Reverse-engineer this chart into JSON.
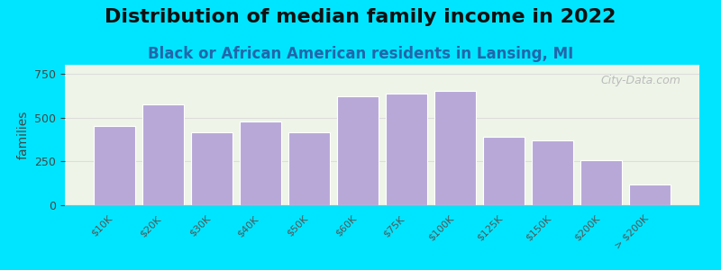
{
  "title": "Distribution of median family income in 2022",
  "subtitle": "Black or African American residents in Lansing, MI",
  "categories": [
    "$10K",
    "$20K",
    "$30K",
    "$40K",
    "$50K",
    "$60K",
    "$75K",
    "$100K",
    "$125K",
    "$150K",
    "$200K",
    "> $200K"
  ],
  "values": [
    450,
    575,
    415,
    475,
    415,
    620,
    635,
    650,
    390,
    370,
    255,
    120
  ],
  "bar_color": "#b8a8d8",
  "bar_edgecolor": "#ffffff",
  "ylabel": "families",
  "ylim": [
    0,
    800
  ],
  "yticks": [
    0,
    250,
    500,
    750
  ],
  "background_outer": "#00e5ff",
  "background_plot": "#eef5e8",
  "title_fontsize": 16,
  "subtitle_fontsize": 12,
  "subtitle_color": "#2266aa",
  "watermark": "City-Data.com",
  "grid_color": "#dddddd"
}
